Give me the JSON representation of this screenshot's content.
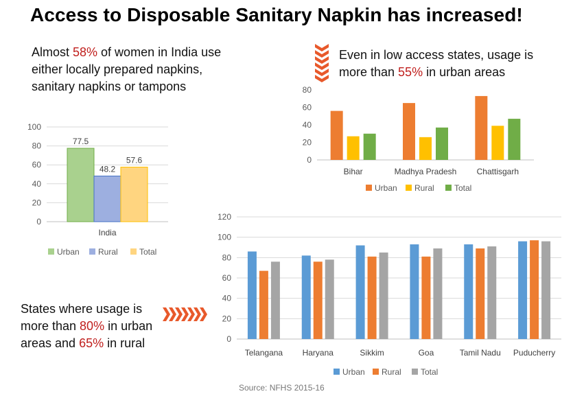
{
  "title": "Access to Disposable Sanitary Napkin has increased!",
  "notes": {
    "india": {
      "pre": "Almost ",
      "hl": "58%",
      "post": " of women in India use either locally prepared napkins, sanitary napkins or tampons"
    },
    "low_access": {
      "pre": "Even in low access states, usage is more than ",
      "hl": "55%",
      "post": " in urban areas"
    },
    "states": {
      "pre1": "States where usage is more than ",
      "hl1": "80%",
      "mid": " in urban areas and ",
      "hl2": "65%",
      "post": " in rural"
    }
  },
  "source": "Source: NFHS 2015-16",
  "colors": {
    "accent": "#c0201e",
    "chevron": "#e8592b"
  },
  "chart_data": [
    {
      "type": "bar",
      "categories": [
        "India"
      ],
      "series": [
        {
          "name": "Urban",
          "values": [
            77.5
          ],
          "color": "#a9d18e",
          "stroke": "#70ad47"
        },
        {
          "name": "Rural",
          "values": [
            48.2
          ],
          "color": "#9dafe0",
          "stroke": "#4472c4"
        },
        {
          "name": "Total",
          "values": [
            57.6
          ],
          "color": "#ffd580",
          "stroke": "#ffc000"
        }
      ],
      "data_labels": [
        "77.5",
        "48.2",
        "57.6"
      ],
      "ylim": [
        0,
        100
      ],
      "yticks": [
        0,
        20,
        40,
        60,
        80,
        100
      ],
      "grid": true,
      "legend": "bottom"
    },
    {
      "type": "bar",
      "categories": [
        "Bihar",
        "Madhya Pradesh",
        "Chattisgarh"
      ],
      "series": [
        {
          "name": "Urban",
          "values": [
            56,
            65,
            73
          ],
          "color": "#ed7d31"
        },
        {
          "name": "Rural",
          "values": [
            27,
            26,
            39
          ],
          "color": "#ffc000"
        },
        {
          "name": "Total",
          "values": [
            30,
            37,
            47
          ],
          "color": "#70ad47"
        }
      ],
      "ylim": [
        0,
        80
      ],
      "yticks": [
        0,
        20,
        40,
        60,
        80
      ],
      "grid": false,
      "legend": "bottom"
    },
    {
      "type": "bar",
      "categories": [
        "Telangana",
        "Haryana",
        "Sikkim",
        "Goa",
        "Tamil Nadu",
        "Puducherry"
      ],
      "series": [
        {
          "name": "Urban",
          "values": [
            86,
            82,
            92,
            93,
            93,
            96
          ],
          "color": "#5b9bd5"
        },
        {
          "name": "Rural",
          "values": [
            67,
            76,
            81,
            81,
            89,
            97
          ],
          "color": "#ed7d31"
        },
        {
          "name": "Total",
          "values": [
            76,
            78,
            85,
            89,
            91,
            96
          ],
          "color": "#a5a5a5"
        }
      ],
      "ylim": [
        0,
        120
      ],
      "yticks": [
        0,
        20,
        40,
        60,
        80,
        100,
        120
      ],
      "grid": true,
      "legend": "bottom"
    }
  ]
}
